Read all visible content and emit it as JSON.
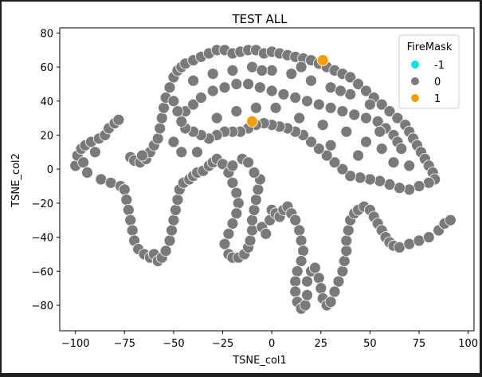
{
  "chart_data": {
    "type": "scatter",
    "title": "TEST ALL",
    "xlabel": "TSNE_col1",
    "ylabel": "TSNE_col2",
    "xlim": [
      -108,
      103
    ],
    "ylim": [
      -95,
      83
    ],
    "x_ticks": [
      -100,
      -75,
      -50,
      -25,
      0,
      25,
      50,
      75,
      100
    ],
    "y_ticks": [
      -80,
      -60,
      -40,
      -20,
      0,
      20,
      40,
      60,
      80
    ],
    "grid": false,
    "legend": {
      "title": "FireMask",
      "position": "top-right",
      "entries": [
        {
          "label": "-1",
          "color": "#00e5ee"
        },
        {
          "label": "0",
          "color": "#7a7a7a"
        },
        {
          "label": "1",
          "color": "#f5a000"
        }
      ]
    },
    "series": [
      {
        "name": "0",
        "color": "#7a7a7a",
        "points": [
          [
            -100,
            2
          ],
          [
            -99,
            8
          ],
          [
            -97,
            12
          ],
          [
            -96,
            4
          ],
          [
            -95,
            14
          ],
          [
            -94,
            -2
          ],
          [
            -92,
            16
          ],
          [
            -90,
            10
          ],
          [
            -88,
            18
          ],
          [
            -87,
            -6
          ],
          [
            -85,
            20
          ],
          [
            -83,
            24
          ],
          [
            -82,
            -8
          ],
          [
            -80,
            27
          ],
          [
            -78,
            29
          ],
          [
            -77,
            -10
          ],
          [
            -75,
            -12
          ],
          [
            -74,
            -18
          ],
          [
            -73,
            -24
          ],
          [
            -72,
            -30
          ],
          [
            -71,
            -36
          ],
          [
            -70,
            -42
          ],
          [
            -68,
            -47
          ],
          [
            -65,
            -50
          ],
          [
            -62,
            -52
          ],
          [
            -60,
            -50
          ],
          [
            -58,
            -54
          ],
          [
            -56,
            -52
          ],
          [
            -54,
            -48
          ],
          [
            -52,
            -42
          ],
          [
            -51,
            -36
          ],
          [
            -50,
            -30
          ],
          [
            -49,
            -24
          ],
          [
            -48,
            -18
          ],
          [
            -47,
            -12
          ],
          [
            -45,
            -8
          ],
          [
            -42,
            -6
          ],
          [
            -40,
            -4
          ],
          [
            -38,
            -2
          ],
          [
            -35,
            -1
          ],
          [
            -32,
            2
          ],
          [
            -30,
            4
          ],
          [
            -28,
            6
          ],
          [
            -25,
            3
          ],
          [
            -22,
            -2
          ],
          [
            -20,
            -8
          ],
          [
            -18,
            -14
          ],
          [
            -17,
            -20
          ],
          [
            -18,
            -26
          ],
          [
            -20,
            -32
          ],
          [
            -22,
            -38
          ],
          [
            -24,
            -44
          ],
          [
            -22,
            -50
          ],
          [
            -20,
            -52
          ],
          [
            -17,
            -52
          ],
          [
            -14,
            -50
          ],
          [
            -12,
            -46
          ],
          [
            -11,
            -42
          ],
          [
            -10,
            -36
          ],
          [
            -10,
            -30
          ],
          [
            -9,
            -24
          ],
          [
            -8,
            -18
          ],
          [
            -7,
            -12
          ],
          [
            -6,
            -6
          ],
          [
            -20,
            2
          ],
          [
            -15,
            6
          ],
          [
            -12,
            4
          ],
          [
            -9,
            -2
          ],
          [
            -5,
            -34
          ],
          [
            -3,
            -38
          ],
          [
            -1,
            -30
          ],
          [
            0,
            -24
          ],
          [
            2,
            -26
          ],
          [
            4,
            -28
          ],
          [
            6,
            -24
          ],
          [
            8,
            -22
          ],
          [
            10,
            -26
          ],
          [
            12,
            -30
          ],
          [
            14,
            -36
          ],
          [
            15,
            -42
          ],
          [
            16,
            -48
          ],
          [
            15,
            -54
          ],
          [
            13,
            -60
          ],
          [
            12,
            -66
          ],
          [
            12,
            -72
          ],
          [
            13,
            -78
          ],
          [
            15,
            -82
          ],
          [
            17,
            -80
          ],
          [
            18,
            -74
          ],
          [
            18,
            -66
          ],
          [
            20,
            -60
          ],
          [
            22,
            -58
          ],
          [
            24,
            -64
          ],
          [
            25,
            -70
          ],
          [
            26,
            -76
          ],
          [
            28,
            -80
          ],
          [
            30,
            -78
          ],
          [
            32,
            -72
          ],
          [
            34,
            -66
          ],
          [
            36,
            -60
          ],
          [
            37,
            -54
          ],
          [
            38,
            -48
          ],
          [
            38,
            -42
          ],
          [
            39,
            -36
          ],
          [
            40,
            -30
          ],
          [
            42,
            -26
          ],
          [
            44,
            -24
          ],
          [
            47,
            -22
          ],
          [
            50,
            -24
          ],
          [
            52,
            -28
          ],
          [
            54,
            -32
          ],
          [
            56,
            -36
          ],
          [
            58,
            -40
          ],
          [
            60,
            -43
          ],
          [
            62,
            -45
          ],
          [
            65,
            -46
          ],
          [
            70,
            -44
          ],
          [
            75,
            -42
          ],
          [
            80,
            -40
          ],
          [
            85,
            -36
          ],
          [
            88,
            -32
          ],
          [
            91,
            -30
          ],
          [
            -72,
            7
          ],
          [
            -70,
            5
          ],
          [
            -67,
            4
          ],
          [
            -64,
            6
          ],
          [
            -62,
            10
          ],
          [
            -60,
            14
          ],
          [
            -58,
            18
          ],
          [
            -57,
            24
          ],
          [
            -56,
            30
          ],
          [
            -55,
            36
          ],
          [
            -54,
            42
          ],
          [
            -52,
            48
          ],
          [
            -50,
            54
          ],
          [
            -48,
            58
          ],
          [
            -46,
            60
          ],
          [
            -44,
            62
          ],
          [
            -40,
            64
          ],
          [
            -36,
            66
          ],
          [
            -32,
            68
          ],
          [
            -28,
            70
          ],
          [
            -24,
            70
          ],
          [
            -20,
            68
          ],
          [
            -16,
            69
          ],
          [
            -12,
            70
          ],
          [
            -8,
            70
          ],
          [
            -4,
            68
          ],
          [
            0,
            69
          ],
          [
            4,
            68
          ],
          [
            8,
            67
          ],
          [
            12,
            66
          ],
          [
            16,
            65
          ],
          [
            20,
            64
          ],
          [
            24,
            62
          ],
          [
            28,
            60
          ],
          [
            32,
            58
          ],
          [
            36,
            56
          ],
          [
            40,
            54
          ],
          [
            44,
            50
          ],
          [
            48,
            46
          ],
          [
            52,
            42
          ],
          [
            56,
            38
          ],
          [
            60,
            34
          ],
          [
            64,
            30
          ],
          [
            68,
            26
          ],
          [
            70,
            22
          ],
          [
            72,
            18
          ],
          [
            74,
            14
          ],
          [
            76,
            10
          ],
          [
            78,
            6
          ],
          [
            80,
            2
          ],
          [
            82,
            -2
          ],
          [
            83,
            -6
          ],
          [
            80,
            -8
          ],
          [
            75,
            -10
          ],
          [
            70,
            -12
          ],
          [
            65,
            -11
          ],
          [
            60,
            -9
          ],
          [
            55,
            -7
          ],
          [
            50,
            -6
          ],
          [
            45,
            -5
          ],
          [
            40,
            -4
          ],
          [
            36,
            0
          ],
          [
            32,
            4
          ],
          [
            28,
            8
          ],
          [
            24,
            12
          ],
          [
            20,
            16
          ],
          [
            16,
            20
          ],
          [
            12,
            22
          ],
          [
            8,
            24
          ],
          [
            4,
            25
          ],
          [
            0,
            26
          ],
          [
            -4,
            27
          ],
          [
            -8,
            26
          ],
          [
            -12,
            24
          ],
          [
            -16,
            22
          ],
          [
            -20,
            22
          ],
          [
            -24,
            22
          ],
          [
            -28,
            20
          ],
          [
            -32,
            18
          ],
          [
            -36,
            20
          ],
          [
            -40,
            22
          ],
          [
            -44,
            24
          ],
          [
            -46,
            28
          ],
          [
            -44,
            34
          ],
          [
            -40,
            38
          ],
          [
            -36,
            42
          ],
          [
            -30,
            46
          ],
          [
            -24,
            48
          ],
          [
            -18,
            50
          ],
          [
            -12,
            50
          ],
          [
            -6,
            48
          ],
          [
            0,
            46
          ],
          [
            6,
            44
          ],
          [
            12,
            42
          ],
          [
            18,
            40
          ],
          [
            24,
            38
          ],
          [
            30,
            36
          ],
          [
            36,
            34
          ],
          [
            42,
            32
          ],
          [
            48,
            30
          ],
          [
            54,
            28
          ],
          [
            58,
            24
          ],
          [
            62,
            20
          ],
          [
            64,
            16
          ],
          [
            66,
            12
          ],
          [
            -30,
            56
          ],
          [
            -20,
            58
          ],
          [
            -10,
            60
          ],
          [
            0,
            58
          ],
          [
            10,
            56
          ],
          [
            20,
            52
          ],
          [
            30,
            48
          ],
          [
            40,
            44
          ],
          [
            50,
            38
          ],
          [
            -50,
            40
          ],
          [
            -48,
            34
          ],
          [
            -46,
            10
          ],
          [
            -38,
            10
          ],
          [
            -28,
            30
          ],
          [
            -18,
            34
          ],
          [
            -8,
            36
          ],
          [
            2,
            36
          ],
          [
            14,
            30
          ],
          [
            26,
            26
          ],
          [
            38,
            22
          ],
          [
            48,
            16
          ],
          [
            56,
            12
          ],
          [
            62,
            4
          ],
          [
            70,
            2
          ],
          [
            -66,
            8
          ],
          [
            -50,
            16
          ],
          [
            -40,
            52
          ],
          [
            15,
            60
          ],
          [
            35,
            46
          ],
          [
            55,
            22
          ],
          [
            44,
            8
          ],
          [
            30,
            14
          ],
          [
            -5,
            58
          ]
        ]
      },
      {
        "name": "1",
        "color": "#f5a000",
        "points": [
          [
            -10,
            28
          ],
          [
            26,
            64
          ]
        ]
      },
      {
        "name": "-1",
        "color": "#00e5ee",
        "points": []
      }
    ]
  }
}
